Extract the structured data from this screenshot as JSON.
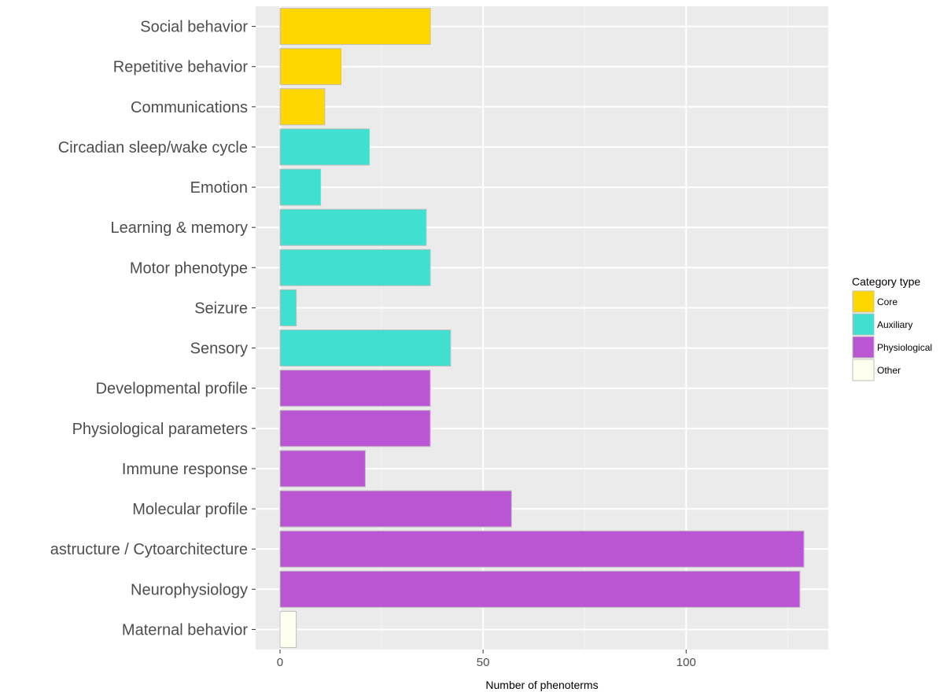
{
  "chart_data": {
    "type": "bar",
    "orientation": "horizontal",
    "xlabel": "Number of phenoterms",
    "ylabel": "",
    "xlim": [
      -6,
      135
    ],
    "x_ticks": [
      0,
      50,
      100
    ],
    "grid": true,
    "legend": {
      "title": "Category type",
      "position": "right",
      "entries": [
        {
          "name": "Core",
          "color": "#FFD700"
        },
        {
          "name": "Auxiliary",
          "color": "#40E0D0"
        },
        {
          "name": "Physiological",
          "color": "#BA55D3"
        },
        {
          "name": "Other",
          "color": "#FFFFF0"
        }
      ]
    },
    "categories": [
      "Social behavior",
      "Repetitive behavior",
      "Communications",
      "Circadian sleep/wake cycle",
      "Emotion",
      "Learning & memory",
      "Motor phenotype",
      "Seizure",
      "Sensory",
      "Developmental profile",
      "Physiological parameters",
      "Immune response",
      "Molecular profile",
      "astructure / Cytoarchitecture",
      "Neurophysiology",
      "Maternal behavior"
    ],
    "values": [
      37,
      15,
      11,
      22,
      10,
      36,
      37,
      4,
      42,
      37,
      37,
      21,
      57,
      129,
      128,
      4
    ],
    "category_types": [
      "Core",
      "Core",
      "Core",
      "Auxiliary",
      "Auxiliary",
      "Auxiliary",
      "Auxiliary",
      "Auxiliary",
      "Auxiliary",
      "Physiological",
      "Physiological",
      "Physiological",
      "Physiological",
      "Physiological",
      "Physiological",
      "Other"
    ]
  }
}
